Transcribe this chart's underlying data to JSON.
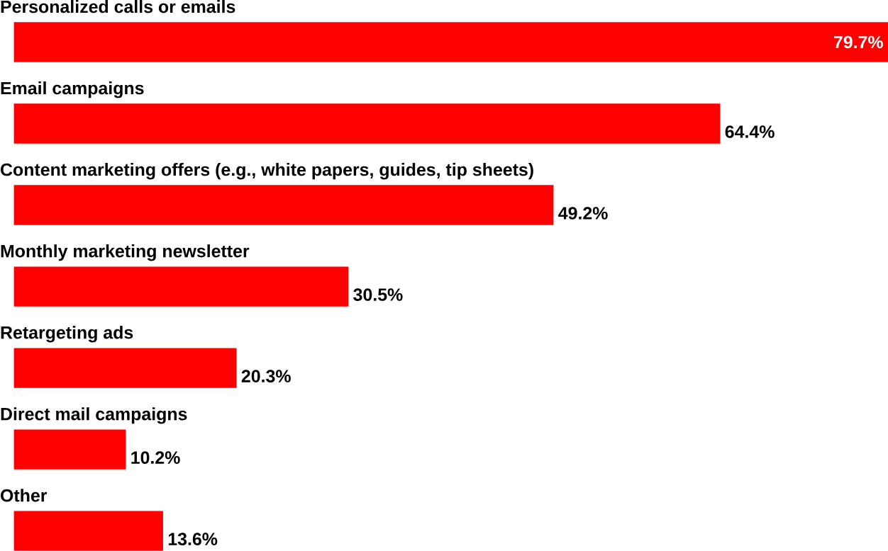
{
  "chart_data": {
    "type": "bar",
    "orientation": "horizontal",
    "categories": [
      "Personalized calls or emails",
      "Email campaigns",
      "Content marketing offers (e.g., white papers, guides, tip sheets)",
      "Monthly marketing newsletter",
      "Retargeting ads",
      "Direct mail campaigns",
      "Other"
    ],
    "values": [
      79.7,
      64.4,
      49.2,
      30.5,
      20.3,
      10.2,
      13.6
    ],
    "value_labels": [
      "79.7%",
      "64.4%",
      "49.2%",
      "30.5%",
      "20.3%",
      "10.2%",
      "13.6%"
    ],
    "color": "#ff0000"
  }
}
